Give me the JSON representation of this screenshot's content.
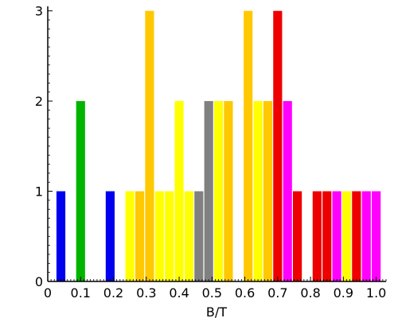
{
  "chart_data": {
    "type": "bar",
    "xlabel": "B/T",
    "ylabel": "",
    "xlim": [
      0,
      1.03
    ],
    "ylim": [
      0,
      3.05
    ],
    "bin_width": 0.03,
    "x_ticks": [
      "0",
      "0.1",
      "0.2",
      "0.3",
      "0.4",
      "0.5",
      "0.6",
      "0.7",
      "0.8",
      "0.9",
      "1.0"
    ],
    "y_ticks": [
      "0",
      "1",
      "2",
      "3"
    ],
    "grid": false,
    "legend": "none",
    "bars": [
      {
        "x": 0.04,
        "value": 1,
        "color": "#0000ee"
      },
      {
        "x": 0.1,
        "value": 2,
        "color": "#00b400"
      },
      {
        "x": 0.19,
        "value": 1,
        "color": "#0000ee"
      },
      {
        "x": 0.25,
        "value": 1,
        "color": "#ffff00"
      },
      {
        "x": 0.28,
        "value": 1,
        "color": "#ffc800"
      },
      {
        "x": 0.31,
        "value": 3,
        "color": "#ffc800"
      },
      {
        "x": 0.34,
        "value": 1,
        "color": "#ffff00"
      },
      {
        "x": 0.37,
        "value": 1,
        "color": "#ffff00"
      },
      {
        "x": 0.4,
        "value": 2,
        "color": "#ffff00"
      },
      {
        "x": 0.43,
        "value": 1,
        "color": "#ffff00"
      },
      {
        "x": 0.46,
        "value": 1,
        "color": "#808080"
      },
      {
        "x": 0.49,
        "value": 2,
        "color": "#808080"
      },
      {
        "x": 0.52,
        "value": 2,
        "color": "#ffff00"
      },
      {
        "x": 0.55,
        "value": 2,
        "color": "#ffc800"
      },
      {
        "x": 0.61,
        "value": 3,
        "color": "#ffc800"
      },
      {
        "x": 0.64,
        "value": 2,
        "color": "#ffff00"
      },
      {
        "x": 0.67,
        "value": 2,
        "color": "#ffc800"
      },
      {
        "x": 0.7,
        "value": 3,
        "color": "#ee0000"
      },
      {
        "x": 0.73,
        "value": 2,
        "color": "#ff00ff"
      },
      {
        "x": 0.76,
        "value": 1,
        "color": "#ee0000"
      },
      {
        "x": 0.82,
        "value": 1,
        "color": "#ee0000"
      },
      {
        "x": 0.85,
        "value": 1,
        "color": "#ee0000"
      },
      {
        "x": 0.88,
        "value": 1,
        "color": "#ff00ff"
      },
      {
        "x": 0.91,
        "value": 1,
        "color": "#ffff00"
      },
      {
        "x": 0.94,
        "value": 1,
        "color": "#ee0000"
      },
      {
        "x": 0.97,
        "value": 1,
        "color": "#ff00ff"
      },
      {
        "x": 1.0,
        "value": 1,
        "color": "#ff00ff"
      }
    ]
  }
}
